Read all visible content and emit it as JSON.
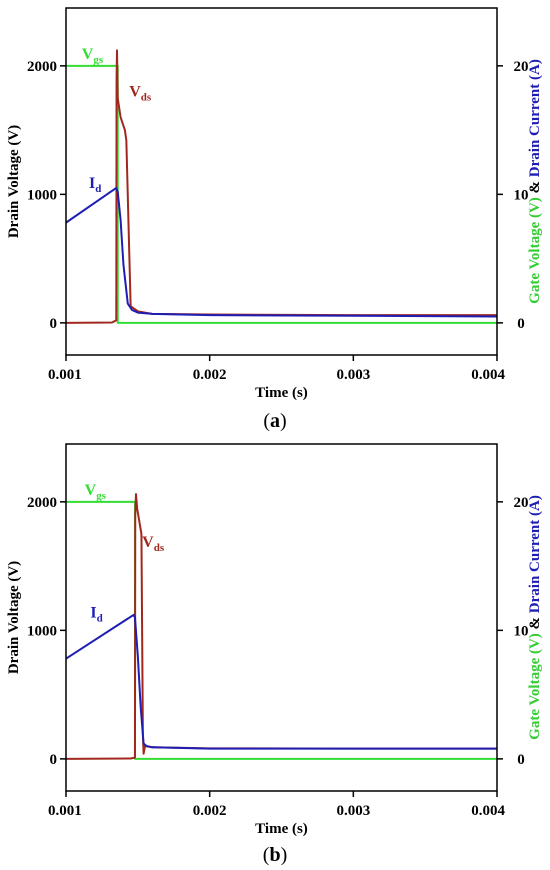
{
  "colors": {
    "vgs": "#33dd33",
    "vds": "#a0281e",
    "id": "#1e1eb4",
    "axis": "#000000",
    "right_label_green": "#33cc33",
    "right_label_blue": "#1e1eb4"
  },
  "chart_data": [
    {
      "panel": "a",
      "type": "line",
      "caption_open": "(",
      "caption_letter": "a",
      "caption_close": ")",
      "xlabel": "Time (s)",
      "ylabel": "Drain Voltage (V)",
      "y2label_part1": "Gate Voltage (V)",
      "y2label_amp": " & ",
      "y2label_part2": "Drain Current (A)",
      "xlim": [
        0.001,
        0.004
      ],
      "ylim": [
        -250,
        2450
      ],
      "y2lim": [
        -2.5,
        24.5
      ],
      "xticks": [
        0.001,
        0.002,
        0.003,
        0.004
      ],
      "xtick_labels": [
        "0.001",
        "0.002",
        "0.003",
        "0.004"
      ],
      "yticks": [
        0,
        1000,
        2000
      ],
      "ytick_labels": [
        "0",
        "1000",
        "2000"
      ],
      "y2ticks": [
        0,
        10,
        20
      ],
      "y2tick_labels": [
        "0",
        "10",
        "20"
      ],
      "series": [
        {
          "key": "vgs",
          "axis": "left",
          "x": [
            0.001,
            0.00136,
            0.00136,
            0.004
          ],
          "y": [
            2000,
            2000,
            0,
            0
          ]
        },
        {
          "key": "vds",
          "axis": "left",
          "x": [
            0.001,
            0.00132,
            0.00135,
            0.001352,
            0.001355,
            0.00136,
            0.00138,
            0.00141,
            0.00142,
            0.00145,
            0.0015,
            0.0016,
            0.002,
            0.003,
            0.004
          ],
          "y": [
            0,
            3,
            20,
            1900,
            2120,
            1750,
            1600,
            1500,
            1420,
            130,
            90,
            70,
            65,
            60,
            60
          ]
        },
        {
          "key": "id",
          "axis": "right",
          "x": [
            0.001,
            0.00135,
            0.00136,
            0.00138,
            0.0014,
            0.00143,
            0.00146,
            0.0015,
            0.0016,
            0.002,
            0.003,
            0.004
          ],
          "y": [
            7.8,
            10.5,
            10.2,
            8.0,
            4.5,
            1.5,
            1.0,
            0.8,
            0.7,
            0.6,
            0.55,
            0.5
          ]
        }
      ],
      "labels": [
        {
          "key": "vgs",
          "main": "V",
          "sub": "gs",
          "x": 0.00111,
          "y": 2055
        },
        {
          "key": "vds",
          "main": "V",
          "sub": "ds",
          "x": 0.00144,
          "y": 1760
        },
        {
          "key": "id",
          "main": "I",
          "sub": "d",
          "x": 0.00116,
          "y": 1050
        }
      ]
    },
    {
      "panel": "b",
      "type": "line",
      "caption_open": "(",
      "caption_letter": "b",
      "caption_close": ")",
      "xlabel": "Time (s)",
      "ylabel": "Drain Voltage (V)",
      "y2label_part1": "Gate Voltage (V)",
      "y2label_amp": " & ",
      "y2label_part2": "Drain Current (A)",
      "xlim": [
        0.001,
        0.004
      ],
      "ylim": [
        -250,
        2450
      ],
      "y2lim": [
        -2.5,
        24.5
      ],
      "xticks": [
        0.001,
        0.002,
        0.003,
        0.004
      ],
      "xtick_labels": [
        "0.001",
        "0.002",
        "0.003",
        "0.004"
      ],
      "yticks": [
        0,
        1000,
        2000
      ],
      "ytick_labels": [
        "0",
        "1000",
        "2000"
      ],
      "y2ticks": [
        0,
        10,
        20
      ],
      "y2tick_labels": [
        "0",
        "10",
        "20"
      ],
      "series": [
        {
          "key": "vgs",
          "axis": "left",
          "x": [
            0.001,
            0.00148,
            0.00148,
            0.004
          ],
          "y": [
            2000,
            2000,
            0,
            0
          ]
        },
        {
          "key": "vds",
          "axis": "left",
          "x": [
            0.001,
            0.00145,
            0.00148,
            0.001482,
            0.001487,
            0.001495,
            0.00151,
            0.001525,
            0.001535,
            0.00154,
            0.00155,
            0.0016,
            0.002,
            0.003,
            0.004
          ],
          "y": [
            0,
            3,
            10,
            1900,
            2060,
            1950,
            1850,
            1750,
            200,
            40,
            100,
            90,
            82,
            80,
            80
          ]
        },
        {
          "key": "id",
          "axis": "right",
          "x": [
            0.001,
            0.00147,
            0.00148,
            0.0015,
            0.00152,
            0.00154,
            0.00156,
            0.0016,
            0.002,
            0.003,
            0.004
          ],
          "y": [
            7.8,
            11.2,
            11.0,
            8.0,
            4.0,
            1.2,
            1.0,
            0.9,
            0.8,
            0.8,
            0.8
          ]
        }
      ],
      "labels": [
        {
          "key": "vgs",
          "main": "V",
          "sub": "gs",
          "x": 0.00113,
          "y": 2055
        },
        {
          "key": "vds",
          "main": "V",
          "sub": "ds",
          "x": 0.00153,
          "y": 1650
        },
        {
          "key": "id",
          "main": "I",
          "sub": "d",
          "x": 0.00117,
          "y": 1100
        }
      ]
    }
  ]
}
